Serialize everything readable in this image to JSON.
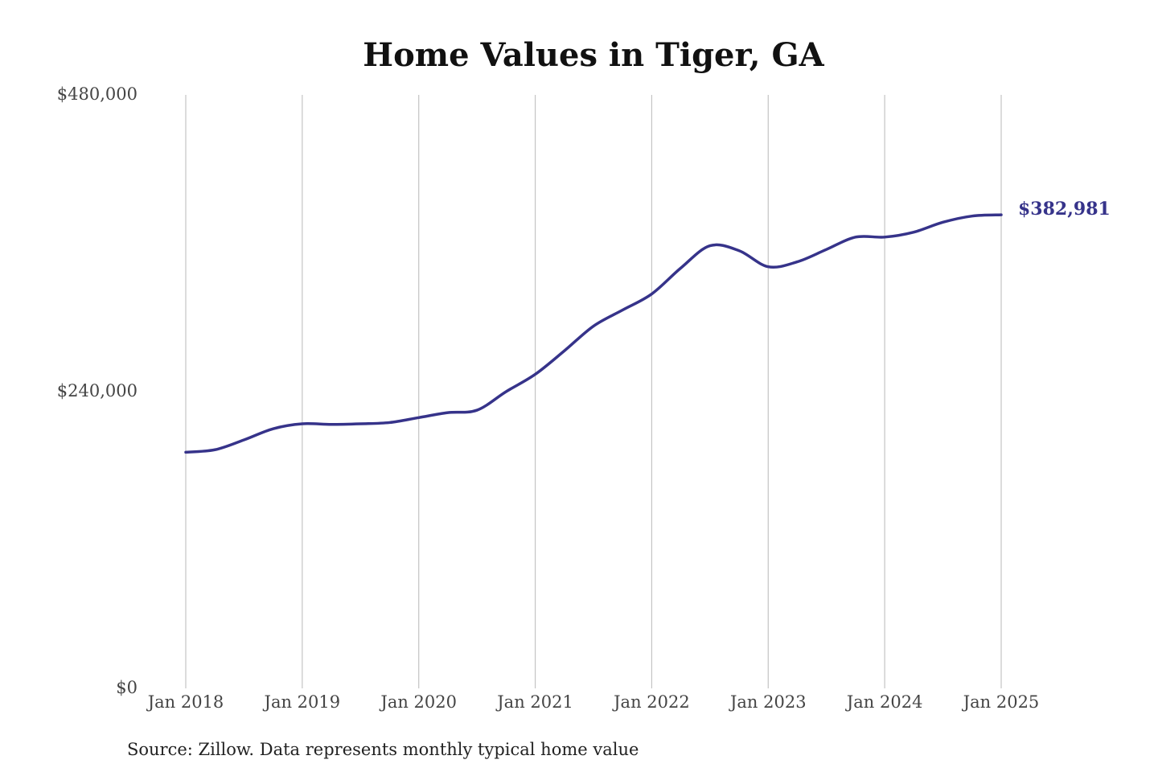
{
  "chart_data": {
    "type": "line",
    "title": "Home Values in Tiger, GA",
    "xlabel": "",
    "ylabel": "",
    "x_ticks": [
      "Jan 2018",
      "Jan 2019",
      "Jan 2020",
      "Jan 2021",
      "Jan 2022",
      "Jan 2023",
      "Jan 2024",
      "Jan 2025"
    ],
    "y_ticks": [
      "$0",
      "$240,000",
      "$480,000"
    ],
    "y_tick_values": [
      0,
      240000,
      480000
    ],
    "xlim": [
      "2018-01",
      "2025-01"
    ],
    "ylim": [
      0,
      480000
    ],
    "grid": "vertical",
    "series": [
      {
        "color": "#36338a",
        "x": [
          "2018-01",
          "2018-04",
          "2018-07",
          "2018-10",
          "2019-01",
          "2019-04",
          "2019-07",
          "2019-10",
          "2020-01",
          "2020-04",
          "2020-07",
          "2020-10",
          "2021-01",
          "2021-04",
          "2021-07",
          "2021-10",
          "2022-01",
          "2022-04",
          "2022-07",
          "2022-10",
          "2023-01",
          "2023-04",
          "2023-07",
          "2023-10",
          "2024-01",
          "2024-04",
          "2024-07",
          "2024-10",
          "2025-01"
        ],
        "values": [
          191000,
          193000,
          201000,
          210000,
          214000,
          213500,
          214000,
          215000,
          219000,
          223000,
          225000,
          240000,
          254000,
          273000,
          293000,
          306000,
          319000,
          340000,
          358000,
          354000,
          341000,
          345000,
          355000,
          365000,
          365000,
          369000,
          377000,
          382000,
          382981
        ]
      }
    ],
    "end_label": "$382,981"
  },
  "source_note": "Source: Zillow. Data represents monthly typical home value"
}
